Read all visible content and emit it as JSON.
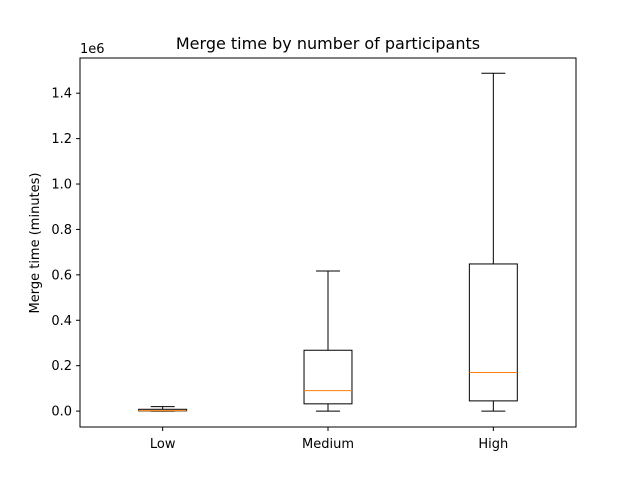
{
  "chart_data": {
    "type": "boxplot",
    "title": "Merge time by number of participants",
    "xlabel": "",
    "ylabel": "Merge time (minutes)",
    "y_offset_label": "1e6",
    "y_scale": 1000000,
    "ylim": [
      -70000,
      1555000
    ],
    "yticks": [
      0,
      200000,
      400000,
      600000,
      800000,
      1000000,
      1200000,
      1400000
    ],
    "ytick_labels": [
      "0.0",
      "0.2",
      "0.4",
      "0.6",
      "0.8",
      "1.0",
      "1.2",
      "1.4"
    ],
    "categories": [
      "Low",
      "Medium",
      "High"
    ],
    "boxes": [
      {
        "category": "Low",
        "whisker_low": 0,
        "q1": 1000,
        "median": 2000,
        "q3": 8000,
        "whisker_high": 20000
      },
      {
        "category": "Medium",
        "whisker_low": 0,
        "q1": 32000,
        "median": 90000,
        "q3": 268000,
        "whisker_high": 617000
      },
      {
        "category": "High",
        "whisker_low": 0,
        "q1": 45000,
        "median": 170000,
        "q3": 648000,
        "whisker_high": 1488000
      }
    ],
    "box_color": "#000000",
    "median_color": "#ff7f0e",
    "grid": false,
    "legend": null
  }
}
